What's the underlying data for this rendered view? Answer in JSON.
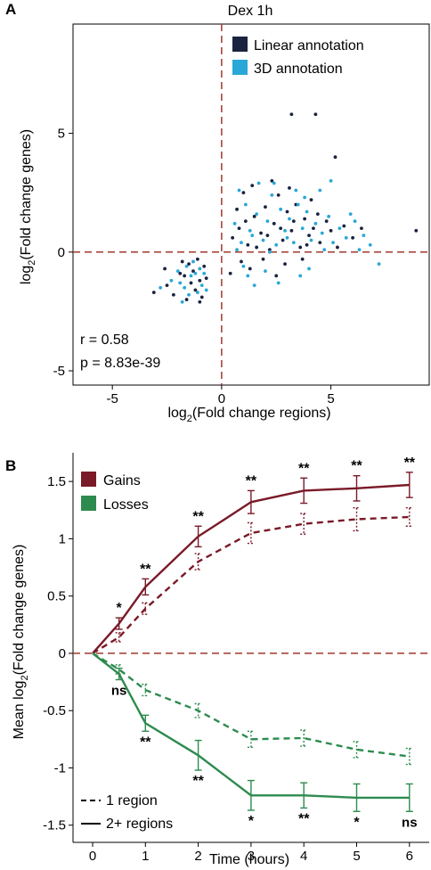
{
  "panel_a": {
    "letter": "A",
    "title": "Dex 1h",
    "xlabel_prefix": "log",
    "xlabel_sub": "2",
    "xlabel_rest": "(Fold change regions)",
    "ylabel_prefix": "log",
    "ylabel_sub": "2",
    "ylabel_rest": "(Fold change genes)",
    "legend": [
      "Linear annotation",
      "3D annotation"
    ],
    "stat_r": "r = 0.58",
    "stat_p": "p = 8.83e-39",
    "x_ticks": [
      "-5",
      "0",
      "5"
    ],
    "y_ticks": [
      "5",
      "0",
      "-5"
    ]
  },
  "panel_b": {
    "letter": "B",
    "xlabel": "Time (hours)",
    "ylabel_prefix": "Mean log",
    "ylabel_sub": "2",
    "ylabel_rest": "(Fold change genes)",
    "legend_color": [
      "Gains",
      "Losses"
    ],
    "legend_line": [
      "1 region",
      "2+ regions"
    ],
    "x_ticks": [
      "0",
      "1",
      "2",
      "3",
      "4",
      "5",
      "6"
    ],
    "y_ticks": [
      "1.5",
      "1",
      "0.5",
      "0",
      "-0.5",
      "-1",
      "-1.5"
    ]
  },
  "colors": {
    "linear": "#1a2340",
    "threeD": "#29a7d6",
    "gains": "#7a1a28",
    "losses": "#2e8b4f",
    "refline": "#a0392c"
  },
  "chart_data": [
    {
      "type": "scatter",
      "title": "Dex 1h",
      "xlabel": "log2(Fold change regions)",
      "ylabel": "log2(Fold change genes)",
      "xlim": [
        -6.8,
        9.5
      ],
      "ylim": [
        -5.6,
        9.6
      ],
      "legend_position": "top-right",
      "grid": false,
      "annotations": [
        "r = 0.58",
        "p = 8.83e-39"
      ],
      "series": [
        {
          "name": "Linear annotation",
          "points": [
            [
              -1.5,
              -0.5
            ],
            [
              -1.3,
              -0.8
            ],
            [
              -1.0,
              -1.2
            ],
            [
              -1.7,
              -1.0
            ],
            [
              -0.8,
              -0.6
            ],
            [
              -1.2,
              -1.6
            ],
            [
              -1.9,
              -0.9
            ],
            [
              -0.9,
              -1.9
            ],
            [
              -1.4,
              -1.3
            ],
            [
              -1.1,
              -0.3
            ],
            [
              -2.5,
              -1.4
            ],
            [
              -3.1,
              -1.7
            ],
            [
              -2.2,
              -1.8
            ],
            [
              -1.6,
              -2.0
            ],
            [
              -0.7,
              -1.1
            ],
            [
              -1.8,
              -0.4
            ],
            [
              -2.6,
              -0.7
            ],
            [
              -1.0,
              -2.1
            ],
            [
              0.5,
              0.6
            ],
            [
              0.8,
              1.0
            ],
            [
              1.0,
              2.5
            ],
            [
              1.2,
              0.3
            ],
            [
              1.5,
              1.5
            ],
            [
              1.8,
              0.8
            ],
            [
              2.0,
              1.9
            ],
            [
              2.2,
              0.1
            ],
            [
              2.4,
              1.2
            ],
            [
              2.6,
              2.4
            ],
            [
              2.8,
              0.5
            ],
            [
              3.0,
              1.7
            ],
            [
              3.2,
              0.9
            ],
            [
              3.4,
              2.0
            ],
            [
              3.6,
              0.2
            ],
            [
              3.8,
              1.4
            ],
            [
              4.0,
              0.7
            ],
            [
              4.2,
              1.0
            ],
            [
              4.5,
              0.4
            ],
            [
              4.8,
              1.3
            ],
            [
              5.0,
              0.9
            ],
            [
              5.3,
              0.2
            ],
            [
              5.6,
              1.1
            ],
            [
              6.0,
              0.6
            ],
            [
              6.4,
              1.0
            ],
            [
              1.1,
              1.3
            ],
            [
              1.6,
              0.2
            ],
            [
              2.1,
              0.7
            ],
            [
              2.7,
              1.0
            ],
            [
              3.3,
              1.3
            ],
            [
              3.9,
              0.3
            ],
            [
              4.4,
              1.6
            ],
            [
              0.7,
              1.8
            ],
            [
              1.4,
              2.8
            ],
            [
              2.3,
              3.0
            ],
            [
              3.1,
              2.7
            ],
            [
              1.9,
              -0.3
            ],
            [
              2.9,
              -0.5
            ],
            [
              0.9,
              -0.4
            ],
            [
              1.3,
              -0.7
            ],
            [
              2.5,
              -1.0
            ],
            [
              3.7,
              -0.3
            ],
            [
              4.1,
              2.2
            ],
            [
              3.2,
              5.8
            ],
            [
              4.3,
              5.8
            ],
            [
              5.2,
              4.0
            ],
            [
              8.9,
              0.9
            ],
            [
              0.4,
              -0.9
            ]
          ]
        },
        {
          "name": "3D annotation",
          "points": [
            [
              -1.6,
              -0.6
            ],
            [
              -1.4,
              -1.0
            ],
            [
              -1.2,
              -0.9
            ],
            [
              -0.9,
              -1.4
            ],
            [
              -1.7,
              -1.5
            ],
            [
              -1.1,
              -1.7
            ],
            [
              -2.0,
              -0.8
            ],
            [
              -0.8,
              -0.9
            ],
            [
              -1.5,
              -1.8
            ],
            [
              -1.3,
              -0.4
            ],
            [
              -1.9,
              -1.3
            ],
            [
              -0.7,
              -1.6
            ],
            [
              -2.3,
              -1.2
            ],
            [
              -2.8,
              -1.5
            ],
            [
              -1.0,
              -0.7
            ],
            [
              -1.8,
              -2.1
            ],
            [
              0.6,
              1.2
            ],
            [
              0.9,
              0.4
            ],
            [
              1.1,
              2.0
            ],
            [
              1.3,
              0.9
            ],
            [
              1.6,
              1.6
            ],
            [
              1.9,
              0.5
            ],
            [
              2.1,
              1.3
            ],
            [
              2.3,
              2.4
            ],
            [
              2.5,
              0.3
            ],
            [
              2.7,
              1.8
            ],
            [
              2.9,
              0.9
            ],
            [
              3.1,
              1.4
            ],
            [
              3.3,
              0.4
            ],
            [
              3.5,
              2.0
            ],
            [
              3.7,
              1.0
            ],
            [
              3.9,
              1.7
            ],
            [
              4.1,
              0.5
            ],
            [
              4.3,
              1.2
            ],
            [
              4.6,
              0.8
            ],
            [
              4.9,
              1.5
            ],
            [
              5.1,
              0.4
            ],
            [
              5.4,
              1.0
            ],
            [
              5.7,
              0.6
            ],
            [
              6.1,
              1.3
            ],
            [
              6.5,
              0.7
            ],
            [
              6.8,
              0.3
            ],
            [
              7.2,
              -0.5
            ],
            [
              0.8,
              2.6
            ],
            [
              1.7,
              2.9
            ],
            [
              2.4,
              2.9
            ],
            [
              3.4,
              2.6
            ],
            [
              4.5,
              2.6
            ],
            [
              5.0,
              3.0
            ],
            [
              1.0,
              -0.6
            ],
            [
              1.5,
              -1.4
            ],
            [
              2.0,
              -0.8
            ],
            [
              2.6,
              -1.3
            ],
            [
              1.2,
              -1.0
            ],
            [
              3.6,
              -1.0
            ],
            [
              4.0,
              -0.7
            ],
            [
              0.7,
              0.1
            ],
            [
              2.2,
              0.0
            ],
            [
              3.0,
              0.6
            ],
            [
              4.7,
              0.1
            ],
            [
              5.9,
              1.6
            ],
            [
              6.3,
              0.1
            ],
            [
              1.4,
              0.7
            ],
            [
              3.8,
              2.3
            ]
          ]
        }
      ]
    },
    {
      "type": "line",
      "xlabel": "Time (hours)",
      "ylabel": "Mean log2(Fold change genes)",
      "xlim": [
        -0.3,
        6.3
      ],
      "ylim": [
        -1.65,
        1.75
      ],
      "legend_position": "top-left",
      "grid": false,
      "series": [
        {
          "name": "Gains",
          "line": "2+ regions",
          "x": [
            0,
            0.5,
            1,
            2,
            3,
            4,
            5,
            6
          ],
          "y": [
            0,
            0.26,
            0.58,
            1.02,
            1.32,
            1.42,
            1.44,
            1.47
          ],
          "err": [
            0,
            0.05,
            0.07,
            0.09,
            0.1,
            0.11,
            0.11,
            0.11
          ],
          "sig": [
            "",
            "*",
            "**",
            "**",
            "**",
            "**",
            "**",
            "**"
          ]
        },
        {
          "name": "Gains",
          "line": "1 region",
          "x": [
            0,
            0.5,
            1,
            2,
            3,
            4,
            5,
            6
          ],
          "y": [
            0,
            0.14,
            0.39,
            0.8,
            1.05,
            1.13,
            1.17,
            1.19
          ],
          "err": [
            0,
            0.04,
            0.05,
            0.07,
            0.09,
            0.09,
            0.1,
            0.08
          ],
          "sig": [
            "",
            "",
            "",
            "",
            "",
            "",
            "",
            ""
          ]
        },
        {
          "name": "Losses",
          "line": "1 region",
          "x": [
            0,
            0.5,
            1,
            2,
            3,
            4,
            5,
            6
          ],
          "y": [
            0,
            -0.14,
            -0.32,
            -0.5,
            -0.75,
            -0.74,
            -0.84,
            -0.9
          ],
          "err": [
            0,
            0.04,
            0.05,
            0.06,
            0.07,
            0.07,
            0.07,
            0.07
          ],
          "sig": [
            "",
            "",
            "",
            "",
            "",
            "",
            "",
            ""
          ]
        },
        {
          "name": "Losses",
          "line": "2+ regions",
          "x": [
            0,
            0.5,
            1,
            2,
            3,
            4,
            5,
            6
          ],
          "y": [
            0,
            -0.18,
            -0.61,
            -0.89,
            -1.24,
            -1.24,
            -1.26,
            -1.26
          ],
          "err": [
            0,
            0.05,
            0.07,
            0.13,
            0.13,
            0.11,
            0.12,
            0.12
          ],
          "sig": [
            "",
            "ns",
            "**",
            "**",
            "*",
            "**",
            "*",
            "ns"
          ]
        }
      ]
    }
  ]
}
